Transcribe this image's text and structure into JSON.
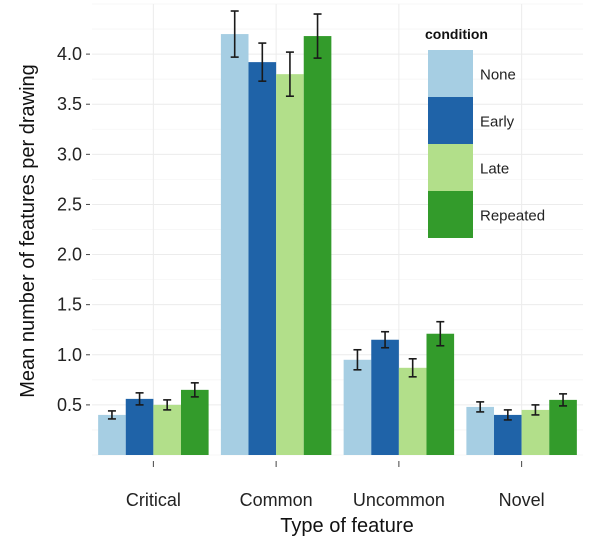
{
  "chart_data": {
    "type": "bar",
    "categories": [
      "Critical",
      "Common",
      "Uncommon",
      "Novel"
    ],
    "series": [
      {
        "name": "None",
        "color": "#a6cee3",
        "values": [
          0.4,
          4.2,
          0.95,
          0.48
        ],
        "error": [
          0.04,
          0.23,
          0.1,
          0.05
        ]
      },
      {
        "name": "Early",
        "color": "#1f63a8",
        "values": [
          0.56,
          3.92,
          1.15,
          0.4
        ],
        "error": [
          0.06,
          0.19,
          0.08,
          0.05
        ]
      },
      {
        "name": "Late",
        "color": "#b2df8a",
        "values": [
          0.5,
          3.8,
          0.87,
          0.45
        ],
        "error": [
          0.05,
          0.22,
          0.09,
          0.05
        ]
      },
      {
        "name": "Repeated",
        "color": "#339b2b",
        "values": [
          0.65,
          4.18,
          1.21,
          0.55
        ],
        "error": [
          0.07,
          0.22,
          0.12,
          0.06
        ]
      }
    ],
    "xlabel": "Type of feature",
    "ylabel": "Mean number of features per drawing",
    "yticks": [
      0.5,
      1.0,
      1.5,
      2.0,
      2.5,
      3.0,
      3.5,
      4.0
    ],
    "ytick_labels": [
      "0.5",
      "1.0",
      "1.5",
      "2.0",
      "2.5",
      "3.0",
      "3.5",
      "4.0"
    ],
    "ylim": [
      0,
      4.5
    ],
    "grid": true,
    "legend": {
      "title": "condition",
      "position": "top-right"
    }
  }
}
